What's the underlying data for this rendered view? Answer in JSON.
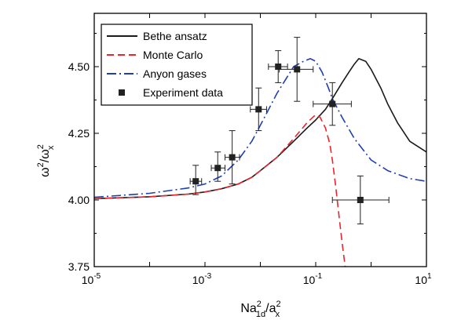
{
  "chart_data": {
    "type": "line",
    "title": "",
    "xlabel": {
      "base": "Na",
      "sup1": "2",
      "sub1": "1d",
      "slash": "/a",
      "sup2": "2",
      "sub2": "x"
    },
    "ylabel": {
      "base": "ω",
      "sup1": "2",
      "slash": "/ω",
      "sup2": "2",
      "sub2": "x"
    },
    "x_scale": "log",
    "xlim": [
      1e-05,
      10
    ],
    "ylim": [
      3.75,
      4.7
    ],
    "x_ticks": [
      {
        "value": 1e-05,
        "base": "10",
        "exp": "-5"
      },
      {
        "value": 0.001,
        "base": "10",
        "exp": "-3"
      },
      {
        "value": 0.1,
        "base": "10",
        "exp": "-1"
      },
      {
        "value": 10,
        "base": "10",
        "exp": "1"
      }
    ],
    "y_ticks": [
      {
        "value": 3.75,
        "label": "3.75"
      },
      {
        "value": 4.0,
        "label": "4.00"
      },
      {
        "value": 4.25,
        "label": "4.25"
      },
      {
        "value": 4.5,
        "label": "4.50"
      }
    ],
    "grid": false,
    "legend_position": "top-left",
    "series": [
      {
        "name": "Bethe ansatz",
        "style": "solid",
        "color": "#1a1a1a",
        "x": [
          1e-05,
          0.0001,
          0.0005,
          0.001,
          0.002,
          0.004,
          0.007,
          0.01,
          0.02,
          0.04,
          0.07,
          0.1,
          0.15,
          0.2,
          0.3,
          0.4,
          0.5,
          0.6,
          0.8,
          1.0,
          1.5,
          2,
          3,
          5,
          10
        ],
        "y": [
          4.005,
          4.012,
          4.022,
          4.03,
          4.042,
          4.06,
          4.085,
          4.11,
          4.16,
          4.22,
          4.27,
          4.3,
          4.34,
          4.38,
          4.44,
          4.48,
          4.51,
          4.53,
          4.52,
          4.49,
          4.42,
          4.36,
          4.29,
          4.22,
          4.18
        ]
      },
      {
        "name": "Monte Carlo",
        "style": "dashed",
        "color": "#e8262b",
        "x": [
          1e-05,
          0.0001,
          0.0005,
          0.001,
          0.002,
          0.004,
          0.007,
          0.01,
          0.02,
          0.04,
          0.07,
          0.1,
          0.12,
          0.15,
          0.18,
          0.2,
          0.23,
          0.26,
          0.3,
          0.34
        ],
        "y": [
          4.005,
          4.012,
          4.022,
          4.03,
          4.042,
          4.06,
          4.085,
          4.11,
          4.16,
          4.23,
          4.29,
          4.32,
          4.31,
          4.27,
          4.21,
          4.15,
          4.05,
          3.95,
          3.84,
          3.75
        ]
      },
      {
        "name": "Anyon gases",
        "style": "dashdot",
        "color": "#1f3fb0",
        "x": [
          1e-05,
          0.0001,
          0.0005,
          0.001,
          0.002,
          0.004,
          0.007,
          0.01,
          0.02,
          0.04,
          0.06,
          0.08,
          0.1,
          0.13,
          0.17,
          0.2,
          0.3,
          0.5,
          1.0,
          2,
          5,
          10
        ],
        "y": [
          4.01,
          4.025,
          4.045,
          4.06,
          4.09,
          4.15,
          4.22,
          4.28,
          4.4,
          4.5,
          4.52,
          4.53,
          4.52,
          4.48,
          4.42,
          4.38,
          4.31,
          4.23,
          4.15,
          4.11,
          4.08,
          4.07
        ]
      }
    ],
    "experiment": {
      "name": "Experiment data",
      "points": [
        {
          "x": 0.00068,
          "y": 4.07,
          "xerr": [
            0.00054,
            0.00087
          ],
          "yerr": [
            4.02,
            4.13
          ]
        },
        {
          "x": 0.0017,
          "y": 4.12,
          "xerr": [
            0.0013,
            0.0023
          ],
          "yerr": [
            4.07,
            4.18
          ]
        },
        {
          "x": 0.0031,
          "y": 4.16,
          "xerr": [
            0.0023,
            0.0042
          ],
          "yerr": [
            4.06,
            4.26
          ]
        },
        {
          "x": 0.0093,
          "y": 4.34,
          "xerr": [
            0.0066,
            0.013
          ],
          "yerr": [
            4.26,
            4.42
          ]
        },
        {
          "x": 0.021,
          "y": 4.5,
          "xerr": [
            0.014,
            0.031
          ],
          "yerr": [
            4.44,
            4.56
          ]
        },
        {
          "x": 0.046,
          "y": 4.49,
          "xerr": [
            0.022,
            0.09
          ],
          "yerr": [
            4.37,
            4.61
          ]
        },
        {
          "x": 0.2,
          "y": 4.36,
          "xerr": [
            0.09,
            0.44
          ],
          "yerr": [
            4.28,
            4.44
          ]
        },
        {
          "x": 0.64,
          "y": 4.0,
          "xerr": [
            0.2,
            2.1
          ],
          "yerr": [
            3.91,
            4.09
          ]
        }
      ]
    }
  }
}
